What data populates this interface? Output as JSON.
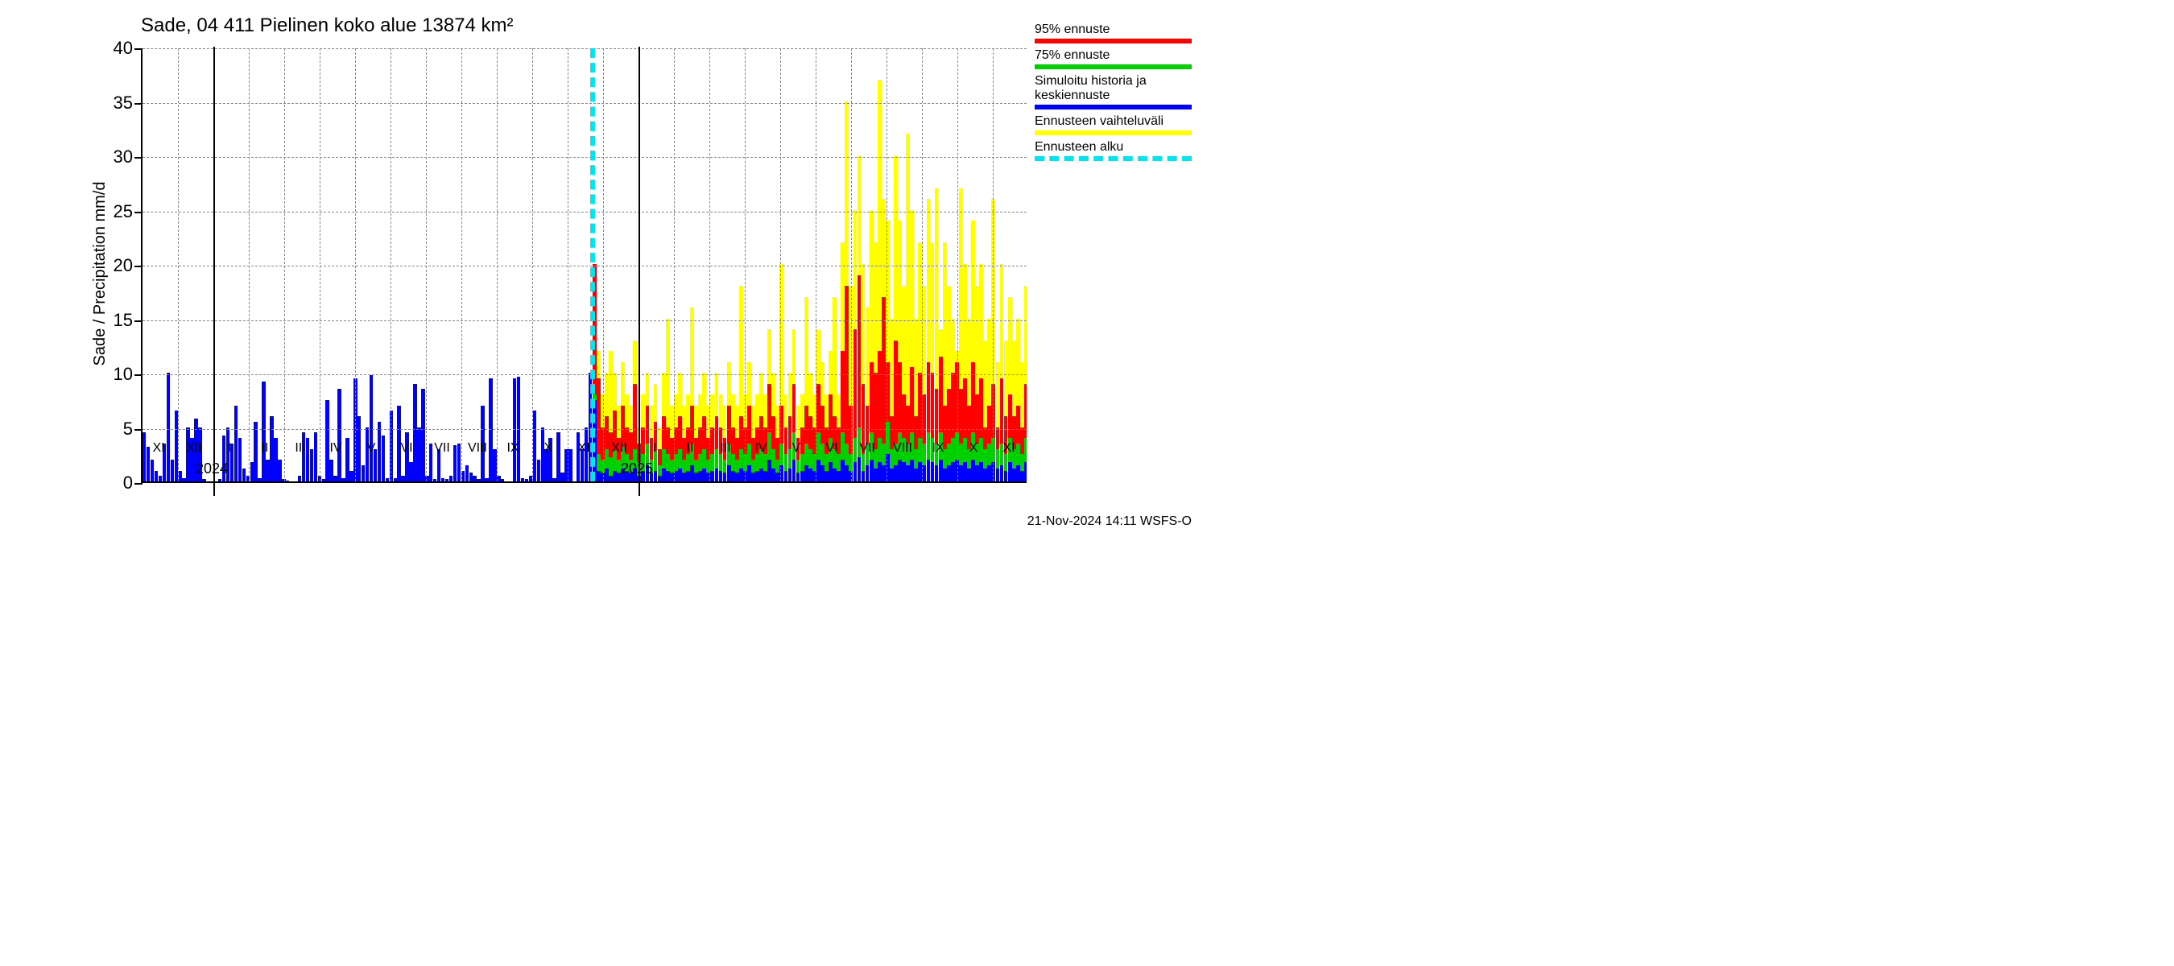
{
  "chart": {
    "type": "bar",
    "title": "Sade, 04 411 Pielinen koko alue 13874 km²",
    "ylabel": "Sade / Precipitation   mm/d",
    "footer": "21-Nov-2024 14:11 WSFS-O",
    "background_color": "#ffffff",
    "grid_color": "#888888",
    "axis_color": "#000000",
    "title_fontsize": 24,
    "label_fontsize": 20,
    "tick_fontsize": 22,
    "ylim": [
      0,
      40
    ],
    "ytick_step": 5,
    "yticks": [
      0,
      5,
      10,
      15,
      20,
      25,
      30,
      35,
      40
    ],
    "xticks_months": [
      "XI",
      "XII",
      "I",
      "II",
      "III",
      "IV",
      "V",
      "VI",
      "VII",
      "VIII",
      "IX",
      "X",
      "XI",
      "XII",
      "I",
      "II",
      "III",
      "IV",
      "V",
      "VI",
      "VII",
      "VIII",
      "IX",
      "X",
      "XI"
    ],
    "xticks_years": [
      {
        "label": "2024",
        "month_index": 2
      },
      {
        "label": "2025",
        "month_index": 14
      }
    ],
    "forecast_start_month_index": 12.7,
    "n_months": 25,
    "colors": {
      "p95": "#ff0000",
      "p75": "#00d000",
      "median": "#0000ff",
      "range": "#ffff00",
      "forecast_line": "#00e5ee"
    },
    "legend": [
      {
        "label": "95% ennuste",
        "color": "#ff0000",
        "style": "solid"
      },
      {
        "label": "75% ennuste",
        "color": "#00d000",
        "style": "solid"
      },
      {
        "label": "Simuloitu historia ja keskiennuste",
        "color": "#0000ff",
        "style": "solid"
      },
      {
        "label": "Ennusteen vaihteluväli",
        "color": "#ffff00",
        "style": "solid"
      },
      {
        "label": "Ennusteen alku",
        "color": "#00e5ee",
        "style": "dashed"
      }
    ],
    "history": [
      4.5,
      3.2,
      2.0,
      1.0,
      0.5,
      3.5,
      10.0,
      2.0,
      6.5,
      1.0,
      0.3,
      5.0,
      4.0,
      5.8,
      5.0,
      0.2,
      0.0,
      0.0,
      0.0,
      0.2,
      4.2,
      5.0,
      3.5,
      7.0,
      4.0,
      1.2,
      0.5,
      1.8,
      5.5,
      0.3,
      9.2,
      2.0,
      6.0,
      4.0,
      2.0,
      0.2,
      0.1,
      0.0,
      0.0,
      0.5,
      4.5,
      4.0,
      3.0,
      4.5,
      0.5,
      0.2,
      7.5,
      2.0,
      0.5,
      8.5,
      0.3,
      4.0,
      1.0,
      9.5,
      6.0,
      1.5,
      5.0,
      9.8,
      3.0,
      5.5,
      4.2,
      0.3,
      6.5,
      0.3,
      7.0,
      0.5,
      4.5,
      1.8,
      9.0,
      5.0,
      8.5,
      0.5,
      3.5,
      0.2,
      3.0,
      0.3,
      0.2,
      0.5,
      3.3,
      3.5,
      1.0,
      1.5,
      0.8,
      0.5,
      0.2,
      7.0,
      0.3,
      9.5,
      3.0,
      0.5,
      0.2,
      0.0,
      0.0,
      9.5,
      9.6,
      0.3,
      0.2,
      0.5,
      6.5,
      2.0,
      5.0,
      3.0,
      4.0,
      0.3,
      4.5,
      0.8,
      3.0,
      3.0,
      0.0,
      4.5,
      3.0,
      5.0,
      10.0
    ],
    "forecast": {
      "median": [
        7.5,
        1.0,
        0.8,
        1.2,
        0.5,
        1.0,
        0.8,
        1.2,
        1.0,
        0.8,
        1.2,
        0.5,
        1.0,
        1.5,
        0.8,
        1.0,
        0.5,
        1.2,
        1.0,
        0.8,
        1.0,
        1.2,
        0.8,
        1.0,
        1.5,
        0.8,
        1.0,
        1.2,
        0.8,
        1.0,
        1.2,
        1.0,
        0.8,
        1.5,
        1.0,
        0.8,
        1.2,
        1.0,
        1.5,
        0.8,
        1.0,
        1.2,
        1.0,
        2.0,
        1.2,
        0.8,
        1.5,
        1.0,
        1.2,
        2.0,
        0.8,
        1.0,
        1.5,
        1.2,
        1.0,
        2.0,
        1.5,
        1.0,
        1.8,
        1.2,
        1.0,
        2.0,
        1.5,
        1.0,
        1.8,
        2.2,
        1.0,
        1.5,
        2.0,
        1.2,
        1.8,
        1.5,
        2.5,
        1.2,
        1.5,
        2.0,
        1.8,
        1.5,
        2.0,
        1.2,
        1.8,
        1.5,
        2.0,
        1.8,
        1.5,
        2.0,
        1.2,
        1.5,
        1.8,
        2.0,
        1.5,
        1.8,
        1.2,
        2.0,
        1.5,
        1.8,
        1.2,
        1.5,
        1.8,
        1.2,
        1.5,
        1.0,
        1.8,
        1.2,
        1.5,
        1.0,
        1.8
      ],
      "p75": [
        8.0,
        2.5,
        2.0,
        3.0,
        2.2,
        2.8,
        2.0,
        3.2,
        2.5,
        2.0,
        3.0,
        1.8,
        2.5,
        3.5,
        2.0,
        2.8,
        1.5,
        3.0,
        2.5,
        2.0,
        2.5,
        3.0,
        2.0,
        2.5,
        3.5,
        2.0,
        2.5,
        3.0,
        2.0,
        2.5,
        3.0,
        2.5,
        2.0,
        3.5,
        2.5,
        2.0,
        3.0,
        2.5,
        3.5,
        2.0,
        2.5,
        3.0,
        2.5,
        4.5,
        3.0,
        2.0,
        3.5,
        2.5,
        3.0,
        4.5,
        2.0,
        2.5,
        3.5,
        3.0,
        2.5,
        4.5,
        3.5,
        2.5,
        4.0,
        3.0,
        2.5,
        4.5,
        3.5,
        2.5,
        4.0,
        5.0,
        2.5,
        3.5,
        4.5,
        3.0,
        4.0,
        3.5,
        5.5,
        3.0,
        3.5,
        4.5,
        4.0,
        3.5,
        4.5,
        3.0,
        4.0,
        3.5,
        4.5,
        4.0,
        3.5,
        4.5,
        3.0,
        3.5,
        4.0,
        4.5,
        3.5,
        4.0,
        3.0,
        4.5,
        3.5,
        4.0,
        3.0,
        3.5,
        4.0,
        3.0,
        3.5,
        2.5,
        4.0,
        3.0,
        3.5,
        2.5,
        4.0
      ],
      "p95": [
        20.0,
        9.5,
        5.0,
        6.0,
        4.5,
        6.5,
        4.0,
        7.0,
        5.0,
        4.5,
        9.0,
        3.5,
        5.0,
        7.0,
        4.0,
        5.5,
        3.0,
        6.0,
        5.0,
        4.0,
        5.0,
        6.0,
        4.0,
        5.0,
        7.0,
        4.0,
        5.0,
        6.0,
        4.0,
        5.0,
        6.0,
        5.0,
        4.0,
        7.0,
        5.0,
        4.0,
        6.0,
        5.0,
        7.0,
        4.0,
        5.0,
        6.0,
        5.0,
        9.0,
        6.0,
        4.0,
        7.0,
        5.0,
        6.0,
        9.0,
        4.0,
        5.0,
        7.0,
        6.0,
        5.0,
        9.0,
        7.0,
        5.0,
        8.0,
        6.0,
        5.0,
        12.0,
        18.0,
        7.0,
        14.0,
        19.0,
        9.0,
        7.0,
        11.0,
        10.0,
        12.0,
        17.0,
        11.0,
        6.0,
        13.0,
        11.0,
        8.0,
        7.0,
        10.5,
        6.0,
        10.0,
        8.0,
        11.0,
        10.0,
        8.5,
        11.5,
        7.0,
        8.5,
        10.0,
        11.0,
        8.5,
        9.5,
        7.0,
        11.0,
        8.0,
        9.5,
        5.0,
        7.0,
        9.0,
        5.0,
        9.5,
        6.0,
        8.0,
        6.0,
        7.0,
        5.0,
        9.0
      ],
      "range_max": [
        20.0,
        12.0,
        8.0,
        10.0,
        12.0,
        10.0,
        7.0,
        11.0,
        8.0,
        7.0,
        13.0,
        5.0,
        8.0,
        10.0,
        7.0,
        9.0,
        5.0,
        10.0,
        15.0,
        7.0,
        8.0,
        10.0,
        7.0,
        8.0,
        16.0,
        7.0,
        8.0,
        10.0,
        7.0,
        8.0,
        10.0,
        8.0,
        7.0,
        11.0,
        8.0,
        7.0,
        18.0,
        8.0,
        11.0,
        7.0,
        8.0,
        10.0,
        8.0,
        14.0,
        10.0,
        7.0,
        20.0,
        8.0,
        10.0,
        14.0,
        7.0,
        8.0,
        17.0,
        10.0,
        8.0,
        14.0,
        11.0,
        8.0,
        12.0,
        17.0,
        8.0,
        22.0,
        35.0,
        18.0,
        25.0,
        30.0,
        20.0,
        16.0,
        25.0,
        22.0,
        37.0,
        26.0,
        24.0,
        15.0,
        30.0,
        24.0,
        18.0,
        32.0,
        25.0,
        15.0,
        22.0,
        18.0,
        26.0,
        22.0,
        27.0,
        14.0,
        22.0,
        18.0,
        15.0,
        12.0,
        27.0,
        20.0,
        15.0,
        24.0,
        18.0,
        20.0,
        13.0,
        15.0,
        26.0,
        11.0,
        20.0,
        13.0,
        17.0,
        13.0,
        15.0,
        11.0,
        18.0
      ]
    }
  }
}
